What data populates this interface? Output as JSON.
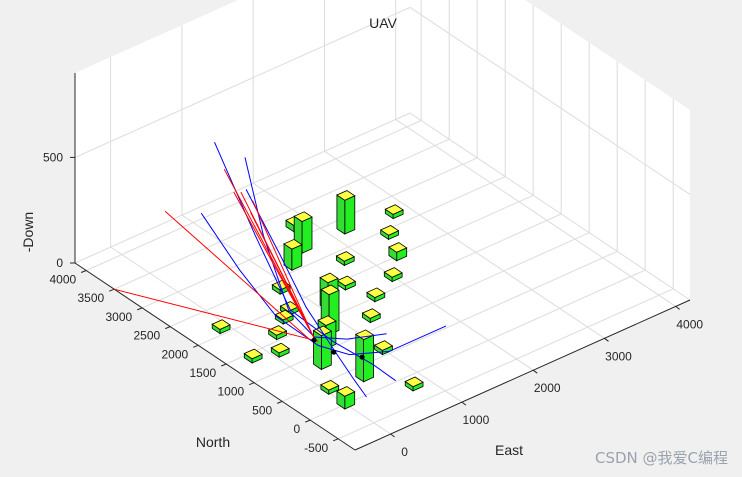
{
  "chart_data": {
    "type": "3d-scene",
    "title": "UAV",
    "xlabel": "East",
    "ylabel": "North",
    "zlabel": "-Down",
    "xlim": [
      -500,
      4200
    ],
    "ylim": [
      -800,
      4200
    ],
    "zlim": [
      0,
      900
    ],
    "x_ticks": [
      0,
      1000,
      2000,
      3000,
      4000
    ],
    "y_ticks": [
      -500,
      0,
      500,
      1000,
      1500,
      2000,
      2500,
      3000,
      3500,
      4000
    ],
    "z_ticks": [
      0,
      500
    ],
    "grid": true,
    "colors": {
      "building_fill": "#22ee22",
      "building_top": "#ffff44",
      "waypath": "#0000ff",
      "vector": "#ff0000",
      "axes_bg": "#ffffff",
      "figure_bg": "#f0f0f0"
    },
    "buildings": [
      {
        "x": 0,
        "y": 0,
        "h": 60
      },
      {
        "x": 500,
        "y": 300,
        "h": 200
      },
      {
        "x": 1000,
        "y": 600,
        "h": 20
      },
      {
        "x": 1300,
        "y": 1200,
        "h": 20
      },
      {
        "x": 1600,
        "y": 1500,
        "h": 20
      },
      {
        "x": 2000,
        "y": 1700,
        "h": 20
      },
      {
        "x": 2300,
        "y": 2000,
        "h": 40
      },
      {
        "x": 2500,
        "y": 2400,
        "h": 20
      },
      {
        "x": 2800,
        "y": 2700,
        "h": 20
      },
      {
        "x": 300,
        "y": 800,
        "h": 160
      },
      {
        "x": 600,
        "y": 1100,
        "h": 110
      },
      {
        "x": 800,
        "y": 1300,
        "h": 190
      },
      {
        "x": 1100,
        "y": 1700,
        "h": 130
      },
      {
        "x": 1500,
        "y": 1900,
        "h": 20
      },
      {
        "x": 1800,
        "y": 2300,
        "h": 20
      },
      {
        "x": 2200,
        "y": 2800,
        "h": 160
      },
      {
        "x": 100,
        "y": 1300,
        "h": 20
      },
      {
        "x": 300,
        "y": 1600,
        "h": 20
      },
      {
        "x": 700,
        "y": 1900,
        "h": 20
      },
      {
        "x": 900,
        "y": 2300,
        "h": 20
      },
      {
        "x": 1300,
        "y": 2600,
        "h": 100
      },
      {
        "x": 1600,
        "y": 2800,
        "h": 150
      },
      {
        "x": 1800,
        "y": 3200,
        "h": 30
      },
      {
        "x": -200,
        "y": 1400,
        "h": 20
      },
      {
        "x": 50,
        "y": 350,
        "h": 20
      },
      {
        "x": 800,
        "y": -200,
        "h": 20
      },
      {
        "x": 550,
        "y": 1800,
        "h": 20
      },
      {
        "x": -100,
        "y": 2100,
        "h": 20
      }
    ],
    "paths": [
      {
        "color": "blue",
        "points": [
          [
            0,
            1800,
            850
          ],
          [
            100,
            1600,
            500
          ],
          [
            300,
            1400,
            150
          ],
          [
            500,
            1200,
            30
          ],
          [
            800,
            1000,
            10
          ],
          [
            1200,
            800,
            10
          ]
        ]
      },
      {
        "color": "blue",
        "points": [
          [
            200,
            2600,
            750
          ],
          [
            300,
            2000,
            400
          ],
          [
            400,
            1500,
            120
          ],
          [
            600,
            1000,
            30
          ],
          [
            700,
            400,
            10
          ],
          [
            700,
            0,
            5
          ]
        ]
      },
      {
        "color": "blue",
        "points": [
          [
            800,
            2800,
            400
          ],
          [
            800,
            2200,
            200
          ],
          [
            700,
            1600,
            70
          ],
          [
            500,
            800,
            20
          ],
          [
            350,
            300,
            10
          ],
          [
            250,
            -50,
            5
          ]
        ]
      },
      {
        "color": "blue",
        "points": [
          [
            -300,
            2200,
            560
          ],
          [
            0,
            1900,
            300
          ],
          [
            200,
            1500,
            120
          ],
          [
            400,
            1000,
            40
          ],
          [
            600,
            700,
            20
          ],
          [
            1000,
            500,
            10
          ],
          [
            1800,
            500,
            10
          ]
        ]
      },
      {
        "color": "red",
        "points": [
          [
            -500,
            3500,
            0
          ],
          [
            400,
            1000,
            60
          ]
        ]
      },
      {
        "color": "red",
        "points": [
          [
            -100,
            3100,
            380
          ],
          [
            350,
            1100,
            60
          ]
        ]
      },
      {
        "color": "red",
        "points": [
          [
            0,
            2000,
            650
          ],
          [
            380,
            1050,
            70
          ]
        ]
      },
      {
        "color": "red",
        "points": [
          [
            60,
            1950,
            650
          ],
          [
            380,
            1050,
            70
          ]
        ]
      },
      {
        "color": "red",
        "points": [
          [
            100,
            2300,
            690
          ],
          [
            380,
            1050,
            70
          ]
        ]
      },
      {
        "color": "red",
        "points": [
          [
            500,
            2300,
            480
          ],
          [
            400,
            1100,
            70
          ]
        ]
      },
      {
        "color": "red",
        "points": [
          [
            550,
            2400,
            400
          ],
          [
            420,
            1150,
            70
          ]
        ]
      }
    ]
  },
  "watermark": "CSDN @我爱C编程"
}
